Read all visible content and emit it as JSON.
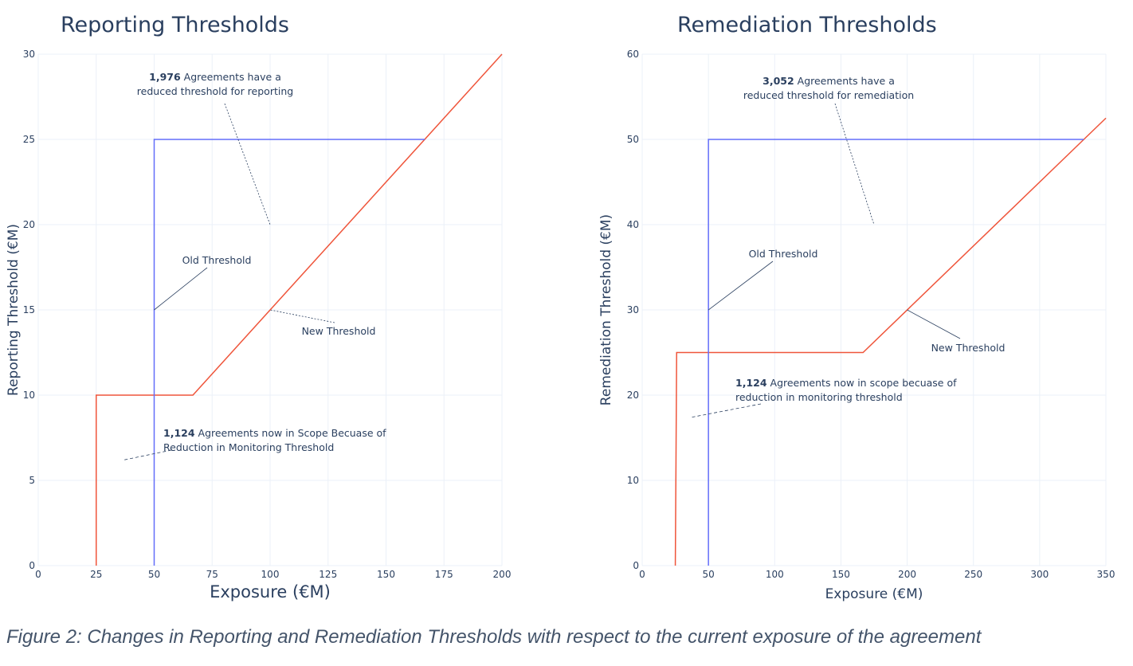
{
  "chart_data": [
    {
      "type": "line",
      "title": "Reporting Thresholds",
      "xlabel": "Exposure (€M)",
      "ylabel": "Reporting Threshold (€M)",
      "xlim": [
        0,
        200
      ],
      "ylim": [
        0,
        30
      ],
      "xticks": [
        0,
        25,
        50,
        75,
        100,
        125,
        150,
        175,
        200
      ],
      "yticks": [
        0,
        5,
        10,
        15,
        20,
        25,
        30
      ],
      "grid": true,
      "series": [
        {
          "color": "#ef553b",
          "x": [
            25,
            25,
            66.7,
            200
          ],
          "y": [
            0,
            10,
            10,
            30
          ]
        },
        {
          "color": "#636efa",
          "x": [
            50,
            50,
            166.7
          ],
          "y": [
            0,
            25,
            25
          ]
        }
      ],
      "annotations": [
        {
          "bold": "1,976",
          "text": " Agreements have a",
          "line2": "reduced threshold for reporting",
          "point": [
            100,
            20
          ]
        },
        {
          "bold": "",
          "text": "Old Threshold",
          "line2": "",
          "point": [
            50,
            15
          ]
        },
        {
          "bold": "",
          "text": "New Threshold",
          "line2": "",
          "point": [
            100,
            15
          ]
        },
        {
          "bold": "1,124",
          "text": " Agreements now in Scope Becuase of",
          "line2": "Reduction in Monitoring Threshold",
          "point": [
            37,
            6.2
          ]
        }
      ]
    },
    {
      "type": "line",
      "title": "Remediation Thresholds",
      "xlabel": "Exposure (€M)",
      "ylabel": "Remediation Threshold (€M)",
      "xlim": [
        0,
        350
      ],
      "ylim": [
        0,
        60
      ],
      "xticks": [
        0,
        50,
        100,
        150,
        200,
        250,
        300,
        350
      ],
      "yticks": [
        0,
        10,
        20,
        30,
        40,
        50,
        60
      ],
      "grid": true,
      "series": [
        {
          "color": "#ef553b",
          "x": [
            25,
            25.5,
            26,
            166.7,
            350
          ],
          "y": [
            0,
            12,
            25,
            25,
            52.5
          ]
        },
        {
          "color": "#636efa",
          "x": [
            50,
            50,
            333.3
          ],
          "y": [
            0,
            50,
            50
          ]
        }
      ],
      "annotations": [
        {
          "bold": "3,052",
          "text": " Agreements have a",
          "line2": "reduced threshold for remediation",
          "point": [
            175,
            40
          ]
        },
        {
          "bold": "",
          "text": "Old Threshold",
          "line2": "",
          "point": [
            50,
            30
          ]
        },
        {
          "bold": "",
          "text": "New Threshold",
          "line2": "",
          "point": [
            200,
            30
          ]
        },
        {
          "bold": "1,124",
          "text": " Agreements now in scope becuase of",
          "line2": "reduction in monitoring threshold",
          "point": [
            37,
            17.4
          ]
        }
      ]
    }
  ],
  "caption": "Figure 2: Changes in Reporting and Remediation Thresholds with respect to the current exposure of the agreement"
}
